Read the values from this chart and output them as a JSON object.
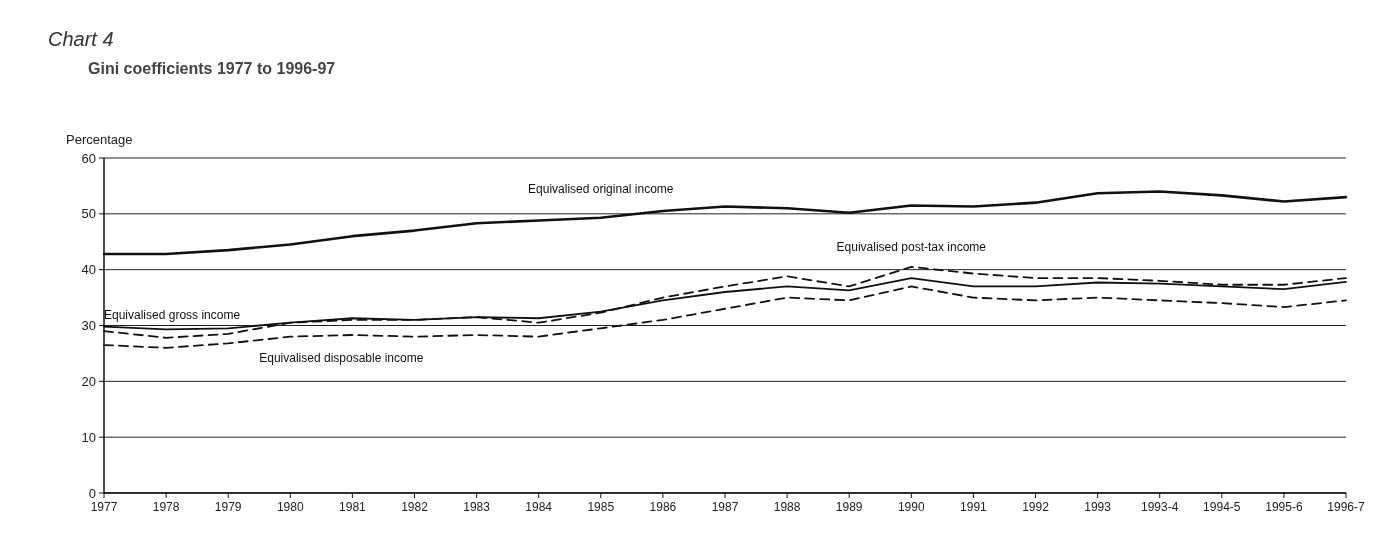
{
  "chart_data": {
    "type": "line",
    "title": "Chart 4",
    "subtitle": "Gini coefficients 1977 to 1996-97",
    "ylabel": "Percentage",
    "categories": [
      "1977",
      "1978",
      "1979",
      "1980",
      "1981",
      "1982",
      "1983",
      "1984",
      "1985",
      "1986",
      "1987",
      "1988",
      "1989",
      "1990",
      "1991",
      "1992",
      "1993",
      "1993-4",
      "1994-5",
      "1995-6",
      "1996-7"
    ],
    "series": [
      {
        "name": "Equivalised original income",
        "color": "#111111",
        "line_style": "solid",
        "values": [
          42.8,
          42.8,
          43.5,
          44.5,
          46,
          47,
          48.3,
          48.8,
          49.3,
          50.5,
          51.3,
          51,
          50.2,
          51.5,
          51.3,
          52,
          53.7,
          54,
          53.3,
          52.2,
          53
        ]
      },
      {
        "name": "Equivalised gross income",
        "color": "#111111",
        "line_style": "solid",
        "values": [
          29.8,
          29.3,
          29.5,
          30.5,
          31.3,
          31,
          31.5,
          31.3,
          32.5,
          34.5,
          36,
          37,
          36.3,
          38.5,
          37,
          37,
          37.7,
          37.5,
          37,
          36.5,
          37.8
        ]
      },
      {
        "name": "Equivalised post-tax income",
        "color": "#111111",
        "line_style": "dashed",
        "values": [
          29,
          27.8,
          28.5,
          30.5,
          31,
          31,
          31.5,
          30.5,
          32.3,
          35,
          37,
          38.8,
          37,
          40.5,
          39.3,
          38.5,
          38.5,
          38,
          37.3,
          37.3,
          38.5
        ]
      },
      {
        "name": "Equivalised disposable income",
        "color": "#111111",
        "line_style": "dashed",
        "values": [
          26.5,
          26,
          26.8,
          28,
          28.3,
          28,
          28.3,
          28,
          29.5,
          31,
          33,
          35,
          34.5,
          37,
          35,
          34.5,
          35,
          34.5,
          34,
          33.3,
          34.5
        ]
      }
    ],
    "ylim": [
      0,
      60
    ],
    "yticks": [
      0,
      10,
      20,
      30,
      40,
      50,
      60
    ],
    "grid": "y",
    "legend": false
  }
}
